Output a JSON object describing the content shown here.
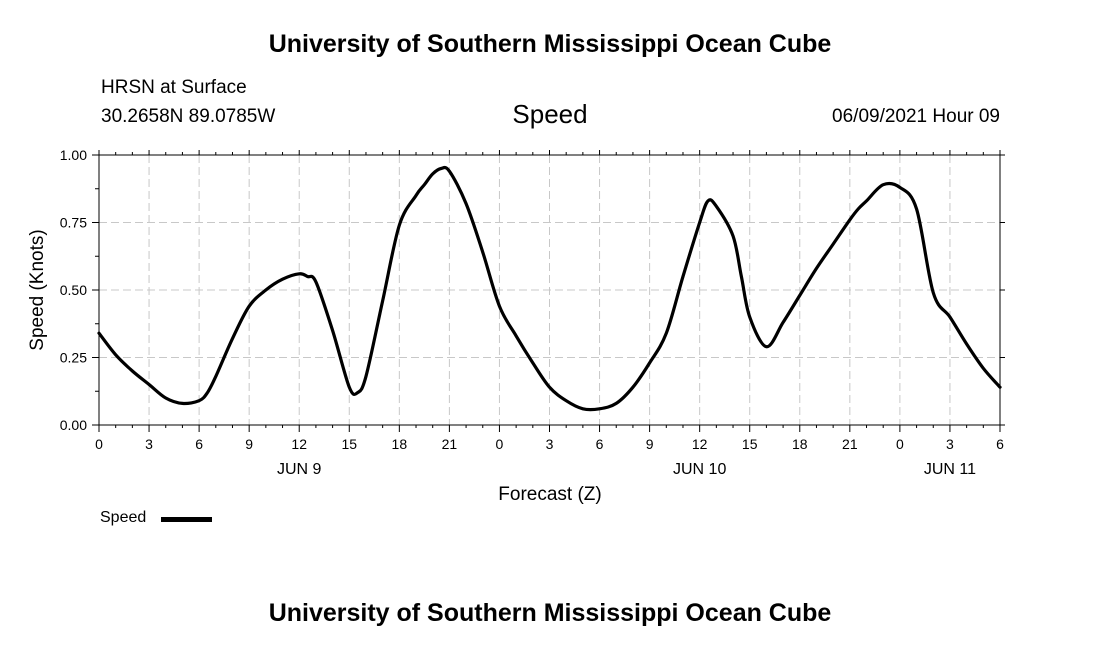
{
  "header": {
    "title": "University of Southern Mississippi Ocean Cube",
    "station": "HRSN at Surface",
    "coordinates": "30.2658N  89.0785W",
    "variable": "Speed",
    "datetime": "06/09/2021 Hour 09"
  },
  "footer": {
    "title": "University of Southern Mississippi Ocean Cube"
  },
  "legend": {
    "label": "Speed"
  },
  "chart_data": {
    "type": "line",
    "title": "Speed",
    "xlabel": "Forecast (Z)",
    "ylabel": "Speed (Knots)",
    "xlim": [
      0,
      54
    ],
    "ylim": [
      0,
      1
    ],
    "y_ticks": [
      "0.00",
      "0.25",
      "0.50",
      "0.75",
      "1.00"
    ],
    "x_ticks": [
      "0",
      "3",
      "6",
      "9",
      "12",
      "15",
      "18",
      "21",
      "0",
      "3",
      "6",
      "9",
      "12",
      "15",
      "18",
      "21",
      "0",
      "3",
      "6"
    ],
    "date_labels": [
      {
        "label": "JUN 9",
        "at_hour": 12
      },
      {
        "label": "JUN 10",
        "at_hour": 36
      },
      {
        "label": "JUN 11",
        "at_hour": 51
      }
    ],
    "grid": true,
    "legend_position": "bottom-left",
    "series": [
      {
        "name": "Speed",
        "color": "#000000",
        "x": [
          0,
          1,
          2,
          3,
          4,
          5,
          6,
          6.5,
          7,
          8,
          9,
          10,
          11,
          12,
          12.5,
          13,
          14,
          15,
          15.5,
          16,
          17,
          18,
          19,
          19.5,
          20,
          20.5,
          21,
          22,
          23,
          24,
          25,
          26,
          27,
          28,
          29,
          30,
          31,
          32,
          33,
          34,
          35,
          36,
          36.5,
          37,
          38,
          38.5,
          39,
          40,
          41,
          42,
          43,
          44,
          45,
          45.5,
          46,
          47,
          48,
          49,
          50,
          51,
          52,
          53,
          54
        ],
        "values": [
          0.34,
          0.26,
          0.2,
          0.15,
          0.1,
          0.08,
          0.09,
          0.12,
          0.18,
          0.32,
          0.44,
          0.5,
          0.54,
          0.56,
          0.55,
          0.53,
          0.35,
          0.14,
          0.12,
          0.18,
          0.46,
          0.74,
          0.85,
          0.89,
          0.93,
          0.95,
          0.94,
          0.82,
          0.64,
          0.44,
          0.33,
          0.23,
          0.14,
          0.09,
          0.06,
          0.06,
          0.08,
          0.14,
          0.23,
          0.34,
          0.55,
          0.75,
          0.83,
          0.81,
          0.7,
          0.55,
          0.4,
          0.29,
          0.38,
          0.48,
          0.58,
          0.67,
          0.76,
          0.8,
          0.83,
          0.89,
          0.88,
          0.8,
          0.49,
          0.4,
          0.3,
          0.21,
          0.14
        ]
      }
    ]
  }
}
